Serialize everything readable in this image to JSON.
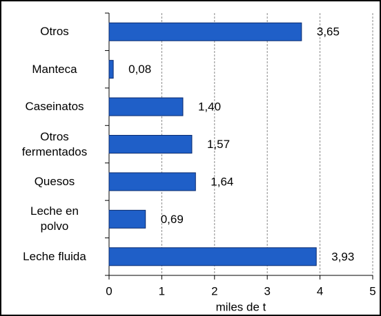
{
  "chart_data": {
    "type": "bar",
    "orientation": "horizontal",
    "categories": [
      "Otros",
      "Manteca",
      "Caseinatos",
      "Otros\nfermentados",
      "Quesos",
      "Leche en\npolvo",
      "Leche fluida"
    ],
    "values": [
      3.65,
      0.08,
      1.4,
      1.57,
      1.64,
      0.69,
      3.93
    ],
    "value_labels": [
      "3,65",
      "0,08",
      "1,40",
      "1,57",
      "1,64",
      "0,69",
      "3,93"
    ],
    "color": "#1f5fc8",
    "xlim": [
      0,
      5
    ],
    "xticks": [
      0,
      1,
      2,
      3,
      4,
      5
    ],
    "xlabel": "miles de t",
    "grid": true
  }
}
